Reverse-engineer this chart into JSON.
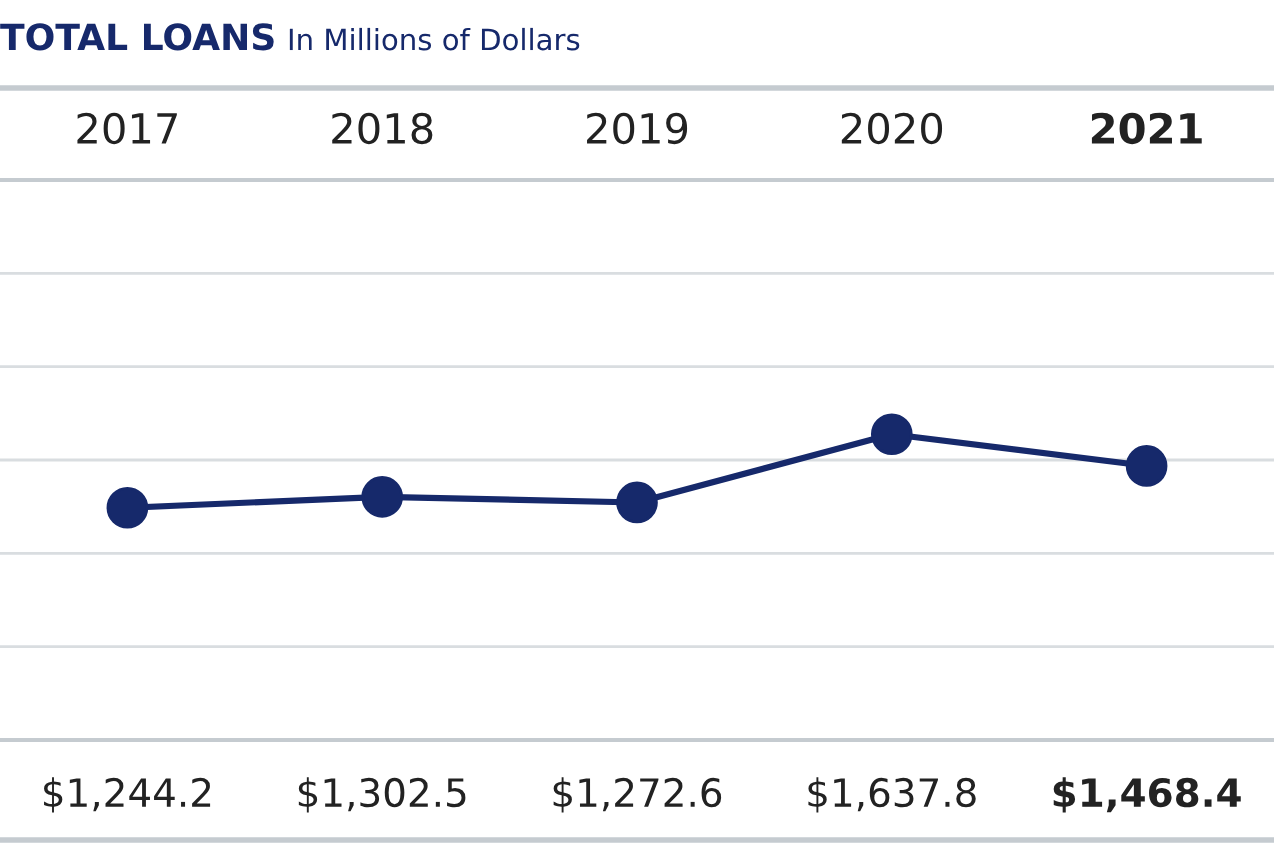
{
  "chart_data": {
    "type": "line",
    "title": "TOTAL LOANS",
    "subtitle": "In Millions of Dollars",
    "categories": [
      "2017",
      "2018",
      "2019",
      "2020",
      "2021"
    ],
    "series": [
      {
        "color": "#16296b",
        "values": [
          1244.2,
          1302.5,
          1272.6,
          1637.8,
          1468.4
        ],
        "value_labels": [
          "$1,244.2",
          "$1,302.5",
          "$1,272.6",
          "$1,637.8",
          "$1,468.4"
        ]
      }
    ],
    "ylim": [
      0,
      3000
    ],
    "yticks": [
      {
        "value": 0,
        "label": null
      },
      {
        "value": 500,
        "label": null
      },
      {
        "value": 1000,
        "label": null
      },
      {
        "value": 1500,
        "label": null
      },
      {
        "value": 2000,
        "label": null
      },
      {
        "value": 2500,
        "label": null
      },
      {
        "value": 3000,
        "label": null
      }
    ],
    "grid": "y",
    "marker": "circle",
    "line_style": "solid",
    "legend": false
  }
}
